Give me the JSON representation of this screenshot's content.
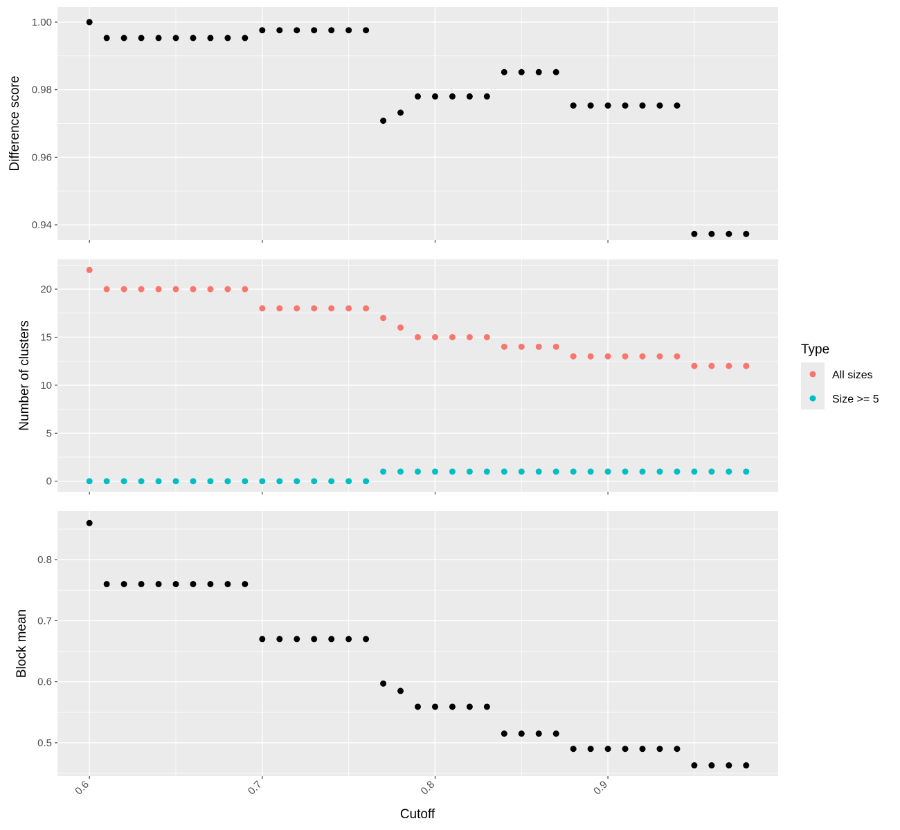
{
  "chart_data": [
    {
      "type": "scatter",
      "ylabel": "Difference score",
      "xlabel": "",
      "xlim": [
        0.5815,
        0.9985
      ],
      "ylim": [
        0.9355,
        1.0045
      ],
      "xticks": [
        0.6,
        0.7,
        0.8,
        0.9
      ],
      "yticks": [
        0.94,
        0.96,
        0.98,
        1.0
      ],
      "ytick_labels": [
        "0.94",
        "0.96",
        "0.98",
        "1.00"
      ],
      "x": [
        0.6,
        0.61,
        0.62,
        0.63,
        0.64,
        0.65,
        0.66,
        0.67,
        0.68,
        0.69,
        0.7,
        0.71,
        0.72,
        0.73,
        0.74,
        0.75,
        0.76,
        0.77,
        0.78,
        0.79,
        0.8,
        0.81,
        0.82,
        0.83,
        0.84,
        0.85,
        0.86,
        0.87,
        0.88,
        0.89,
        0.9,
        0.91,
        0.92,
        0.93,
        0.94,
        0.95,
        0.96,
        0.97,
        0.98
      ],
      "series": [
        {
          "color": "#000000",
          "values": [
            1.0,
            0.9953,
            0.9953,
            0.9953,
            0.9953,
            0.9953,
            0.9953,
            0.9953,
            0.9953,
            0.9953,
            0.9976,
            0.9976,
            0.9976,
            0.9976,
            0.9976,
            0.9976,
            0.9976,
            0.9708,
            0.9732,
            0.978,
            0.978,
            0.978,
            0.978,
            0.978,
            0.9852,
            0.9852,
            0.9852,
            0.9852,
            0.9753,
            0.9753,
            0.9753,
            0.9753,
            0.9753,
            0.9753,
            0.9753,
            0.9373,
            0.9373,
            0.9373,
            0.9373
          ]
        }
      ]
    },
    {
      "type": "scatter",
      "ylabel": "Number of clusters",
      "xlabel": "",
      "xlim": [
        0.5815,
        0.9985
      ],
      "ylim": [
        -1.1,
        23.1
      ],
      "xticks": [
        0.6,
        0.7,
        0.8,
        0.9
      ],
      "yticks": [
        0,
        5,
        10,
        15,
        20
      ],
      "ytick_labels": [
        "0",
        "5",
        "10",
        "15",
        "20"
      ],
      "x": [
        0.6,
        0.61,
        0.62,
        0.63,
        0.64,
        0.65,
        0.66,
        0.67,
        0.68,
        0.69,
        0.7,
        0.71,
        0.72,
        0.73,
        0.74,
        0.75,
        0.76,
        0.77,
        0.78,
        0.79,
        0.8,
        0.81,
        0.82,
        0.83,
        0.84,
        0.85,
        0.86,
        0.87,
        0.88,
        0.89,
        0.9,
        0.91,
        0.92,
        0.93,
        0.94,
        0.95,
        0.96,
        0.97,
        0.98
      ],
      "series": [
        {
          "name": "All sizes",
          "color": "#F8766D",
          "values": [
            22,
            20,
            20,
            20,
            20,
            20,
            20,
            20,
            20,
            20,
            18,
            18,
            18,
            18,
            18,
            18,
            18,
            17,
            16,
            15,
            15,
            15,
            15,
            15,
            14,
            14,
            14,
            14,
            13,
            13,
            13,
            13,
            13,
            13,
            13,
            12,
            12,
            12,
            12
          ]
        },
        {
          "name": "Size >= 5",
          "color": "#00BFC4",
          "values": [
            0,
            0,
            0,
            0,
            0,
            0,
            0,
            0,
            0,
            0,
            0,
            0,
            0,
            0,
            0,
            0,
            0,
            1,
            1,
            1,
            1,
            1,
            1,
            1,
            1,
            1,
            1,
            1,
            1,
            1,
            1,
            1,
            1,
            1,
            1,
            1,
            1,
            1,
            1
          ]
        }
      ],
      "legend": {
        "title": "Type",
        "placement": "right",
        "entries": [
          "All sizes",
          "Size >= 5"
        ]
      }
    },
    {
      "type": "scatter",
      "ylabel": "Block mean",
      "xlabel": "Cutoff",
      "xlim": [
        0.5815,
        0.9985
      ],
      "ylim": [
        0.4455,
        0.8795
      ],
      "xticks": [
        0.6,
        0.7,
        0.8,
        0.9
      ],
      "xtick_labels": [
        "0.6",
        "0.7",
        "0.8",
        "0.9"
      ],
      "yticks": [
        0.5,
        0.6,
        0.7,
        0.8
      ],
      "ytick_labels": [
        "0.5",
        "0.6",
        "0.7",
        "0.8"
      ],
      "x": [
        0.6,
        0.61,
        0.62,
        0.63,
        0.64,
        0.65,
        0.66,
        0.67,
        0.68,
        0.69,
        0.7,
        0.71,
        0.72,
        0.73,
        0.74,
        0.75,
        0.76,
        0.77,
        0.78,
        0.79,
        0.8,
        0.81,
        0.82,
        0.83,
        0.84,
        0.85,
        0.86,
        0.87,
        0.88,
        0.89,
        0.9,
        0.91,
        0.92,
        0.93,
        0.94,
        0.95,
        0.96,
        0.97,
        0.98
      ],
      "series": [
        {
          "color": "#000000",
          "values": [
            0.86,
            0.76,
            0.76,
            0.76,
            0.76,
            0.76,
            0.76,
            0.76,
            0.76,
            0.76,
            0.67,
            0.67,
            0.67,
            0.67,
            0.67,
            0.67,
            0.67,
            0.597,
            0.585,
            0.559,
            0.559,
            0.559,
            0.559,
            0.559,
            0.515,
            0.515,
            0.515,
            0.515,
            0.49,
            0.49,
            0.49,
            0.49,
            0.49,
            0.49,
            0.49,
            0.463,
            0.463,
            0.463,
            0.463
          ]
        }
      ]
    }
  ]
}
